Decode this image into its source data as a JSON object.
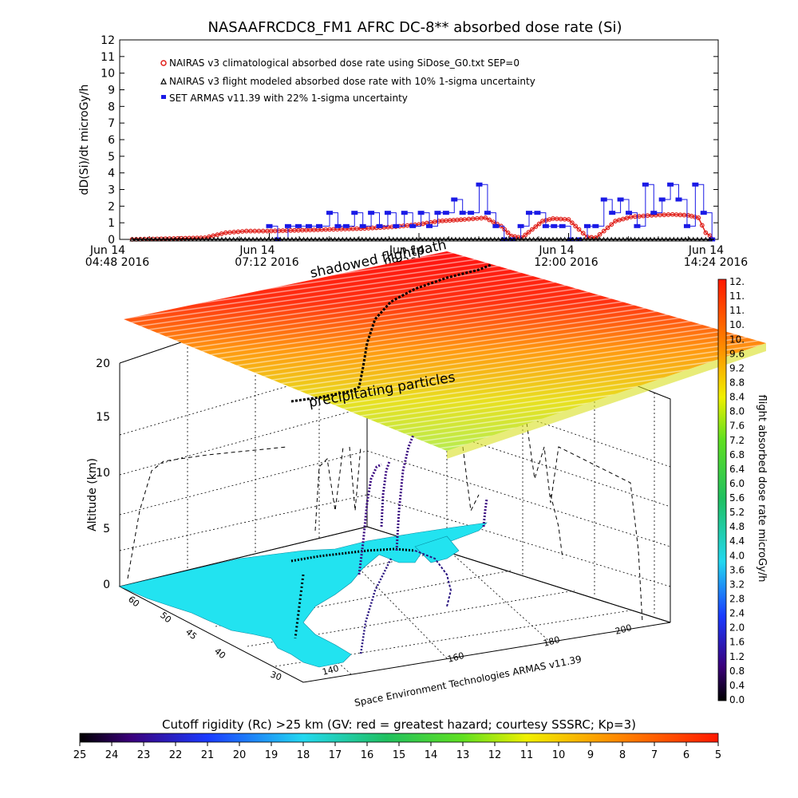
{
  "title": "NASAAFRCDC8_FM1 AFRC DC-8** absorbed dose rate (Si)",
  "colors": {
    "nairas_clim": "#e0201a",
    "nairas_flight": "#000000",
    "set_armas": "#1a1ae6",
    "land": "#22e3f0"
  },
  "chart_data": [
    {
      "type": "line",
      "title": "NASAAFRCDC8_FM1 AFRC DC-8** absorbed dose rate (Si)",
      "ylabel": "dD(Si)/dt microGy/h",
      "ylim": [
        0,
        12
      ],
      "y_ticks": [
        "0",
        "1",
        "2",
        "3",
        "4",
        "5",
        "6",
        "7",
        "8",
        "9",
        "10",
        "11",
        "12"
      ],
      "x_ticks": [
        {
          "line1": "Jun 14",
          "line2": "04:48 2016"
        },
        {
          "line1": "Jun 14",
          "line2": "07:12 2016"
        },
        {
          "line1": "Jun 14",
          "line2": "09:36 2016"
        },
        {
          "line1": "Jun 14",
          "line2": "12:00 2016"
        },
        {
          "line1": "Jun 14",
          "line2": "14:24 2016"
        }
      ],
      "series": [
        {
          "name": "NAIRAS v3 climatological absorbed dose rate using SiDose_G0.txt SEP=0",
          "marker": "circle",
          "points": [
            [
              "2016-06-14 05:00",
              0.0
            ],
            [
              "2016-06-14 05:40",
              0.05
            ],
            [
              "2016-06-14 06:10",
              0.1
            ],
            [
              "2016-06-14 06:30",
              0.4
            ],
            [
              "2016-06-14 06:50",
              0.5
            ],
            [
              "2016-06-14 07:10",
              0.5
            ],
            [
              "2016-06-14 07:40",
              0.55
            ],
            [
              "2016-06-14 08:10",
              0.6
            ],
            [
              "2016-06-14 08:40",
              0.65
            ],
            [
              "2016-06-14 09:10",
              0.75
            ],
            [
              "2016-06-14 09:36",
              0.9
            ],
            [
              "2016-06-14 09:55",
              1.1
            ],
            [
              "2016-06-14 10:20",
              1.2
            ],
            [
              "2016-06-14 10:40",
              1.3
            ],
            [
              "2016-06-14 10:55",
              0.8
            ],
            [
              "2016-06-14 11:05",
              0.2
            ],
            [
              "2016-06-14 11:15",
              0.1
            ],
            [
              "2016-06-14 11:25",
              0.6
            ],
            [
              "2016-06-14 11:35",
              1.1
            ],
            [
              "2016-06-14 11:45",
              1.25
            ],
            [
              "2016-06-14 12:00",
              1.2
            ],
            [
              "2016-06-14 12:10",
              0.6
            ],
            [
              "2016-06-14 12:18",
              0.15
            ],
            [
              "2016-06-14 12:26",
              0.1
            ],
            [
              "2016-06-14 12:34",
              0.5
            ],
            [
              "2016-06-14 12:45",
              1.1
            ],
            [
              "2016-06-14 13:00",
              1.35
            ],
            [
              "2016-06-14 13:20",
              1.45
            ],
            [
              "2016-06-14 13:40",
              1.5
            ],
            [
              "2016-06-14 13:55",
              1.45
            ],
            [
              "2016-06-14 14:05",
              1.3
            ],
            [
              "2016-06-14 14:12",
              0.4
            ],
            [
              "2016-06-14 14:20",
              0.05
            ]
          ]
        },
        {
          "name": "NAIRAS v3 flight modeled absorbed dose rate with 10% 1-sigma uncertainty",
          "marker": "triangle",
          "points": [
            [
              "2016-06-14 05:00",
              0.0
            ],
            [
              "2016-06-14 06:00",
              0.0
            ],
            [
              "2016-06-14 07:00",
              0.0
            ],
            [
              "2016-06-14 08:00",
              0.0
            ],
            [
              "2016-06-14 09:00",
              0.0
            ],
            [
              "2016-06-14 10:00",
              0.0
            ],
            [
              "2016-06-14 11:00",
              0.0
            ],
            [
              "2016-06-14 12:00",
              0.0
            ],
            [
              "2016-06-14 13:00",
              0.0
            ],
            [
              "2016-06-14 14:00",
              0.0
            ],
            [
              "2016-06-14 14:20",
              0.0
            ]
          ]
        },
        {
          "name": "SET ARMAS v11.39 with 22% 1-sigma uncertainty",
          "marker": "square",
          "points": [
            [
              "2016-06-14 07:12",
              0.8
            ],
            [
              "2016-06-14 07:20",
              0.0
            ],
            [
              "2016-06-14 07:30",
              0.8
            ],
            [
              "2016-06-14 07:40",
              0.8
            ],
            [
              "2016-06-14 07:50",
              0.8
            ],
            [
              "2016-06-14 08:00",
              0.8
            ],
            [
              "2016-06-14 08:10",
              1.6
            ],
            [
              "2016-06-14 08:18",
              0.8
            ],
            [
              "2016-06-14 08:26",
              0.8
            ],
            [
              "2016-06-14 08:34",
              1.6
            ],
            [
              "2016-06-14 08:42",
              0.8
            ],
            [
              "2016-06-14 08:50",
              1.6
            ],
            [
              "2016-06-14 08:58",
              0.8
            ],
            [
              "2016-06-14 09:06",
              1.6
            ],
            [
              "2016-06-14 09:14",
              0.8
            ],
            [
              "2016-06-14 09:22",
              1.6
            ],
            [
              "2016-06-14 09:30",
              0.8
            ],
            [
              "2016-06-14 09:38",
              1.6
            ],
            [
              "2016-06-14 09:46",
              0.8
            ],
            [
              "2016-06-14 09:54",
              1.6
            ],
            [
              "2016-06-14 10:02",
              1.6
            ],
            [
              "2016-06-14 10:10",
              2.4
            ],
            [
              "2016-06-14 10:18",
              1.6
            ],
            [
              "2016-06-14 10:26",
              1.6
            ],
            [
              "2016-06-14 10:34",
              3.3
            ],
            [
              "2016-06-14 10:42",
              1.6
            ],
            [
              "2016-06-14 10:50",
              0.8
            ],
            [
              "2016-06-14 10:58",
              0.0
            ],
            [
              "2016-06-14 11:06",
              0.0
            ],
            [
              "2016-06-14 11:14",
              0.8
            ],
            [
              "2016-06-14 11:22",
              1.6
            ],
            [
              "2016-06-14 11:30",
              1.6
            ],
            [
              "2016-06-14 11:38",
              0.8
            ],
            [
              "2016-06-14 11:46",
              0.8
            ],
            [
              "2016-06-14 11:54",
              0.8
            ],
            [
              "2016-06-14 12:02",
              0.0
            ],
            [
              "2016-06-14 12:10",
              0.0
            ],
            [
              "2016-06-14 12:18",
              0.8
            ],
            [
              "2016-06-14 12:26",
              0.8
            ],
            [
              "2016-06-14 12:34",
              2.4
            ],
            [
              "2016-06-14 12:42",
              1.6
            ],
            [
              "2016-06-14 12:50",
              2.4
            ],
            [
              "2016-06-14 12:58",
              1.6
            ],
            [
              "2016-06-14 13:06",
              0.8
            ],
            [
              "2016-06-14 13:14",
              3.3
            ],
            [
              "2016-06-14 13:22",
              1.6
            ],
            [
              "2016-06-14 13:30",
              2.4
            ],
            [
              "2016-06-14 13:38",
              3.3
            ],
            [
              "2016-06-14 13:46",
              2.4
            ],
            [
              "2016-06-14 13:54",
              0.8
            ],
            [
              "2016-06-14 14:02",
              3.3
            ],
            [
              "2016-06-14 14:10",
              1.6
            ],
            [
              "2016-06-14 14:18",
              0.0
            ]
          ]
        }
      ]
    },
    {
      "type": "scatter",
      "ylabel": "Altitude (km)",
      "zlim": [
        0,
        20
      ],
      "z_ticks": [
        "0",
        "5",
        "10",
        "15",
        "20"
      ],
      "lat_ticks": [
        "30",
        "40",
        "45",
        "50",
        "60"
      ],
      "lon_ticks": [
        "140",
        "160",
        "180",
        "200"
      ],
      "annotations": [
        "shadowed flightpath",
        "precipitating particles"
      ],
      "credit": "Space Environment Technologies ARMAS v11.39",
      "colorbar_right": {
        "label": "flight absorbed dose rate microGy/h",
        "ticks": [
          "0.0",
          "0.4",
          "0.8",
          "1.2",
          "1.6",
          "2.0",
          "2.4",
          "2.8",
          "3.2",
          "3.6",
          "4.0",
          "4.4",
          "4.8",
          "5.2",
          "5.6",
          "6.0",
          "6.4",
          "6.8",
          "7.2",
          "7.6",
          "8.0",
          "8.4",
          "8.8",
          "9.2",
          "9.6",
          "10.",
          "10.",
          "11.",
          "11.",
          "12."
        ]
      },
      "colorbar_bottom": {
        "label": "Cutoff rigidity (Rc) >25 km (GV: red = greatest hazard; courtesy SSSRC; Kp=3)",
        "ticks": [
          "25",
          "24",
          "23",
          "22",
          "21",
          "20",
          "19",
          "18",
          "17",
          "16",
          "15",
          "14",
          "13",
          "12",
          "11",
          "10",
          "9",
          "8",
          "7",
          "6",
          "5"
        ]
      }
    }
  ]
}
